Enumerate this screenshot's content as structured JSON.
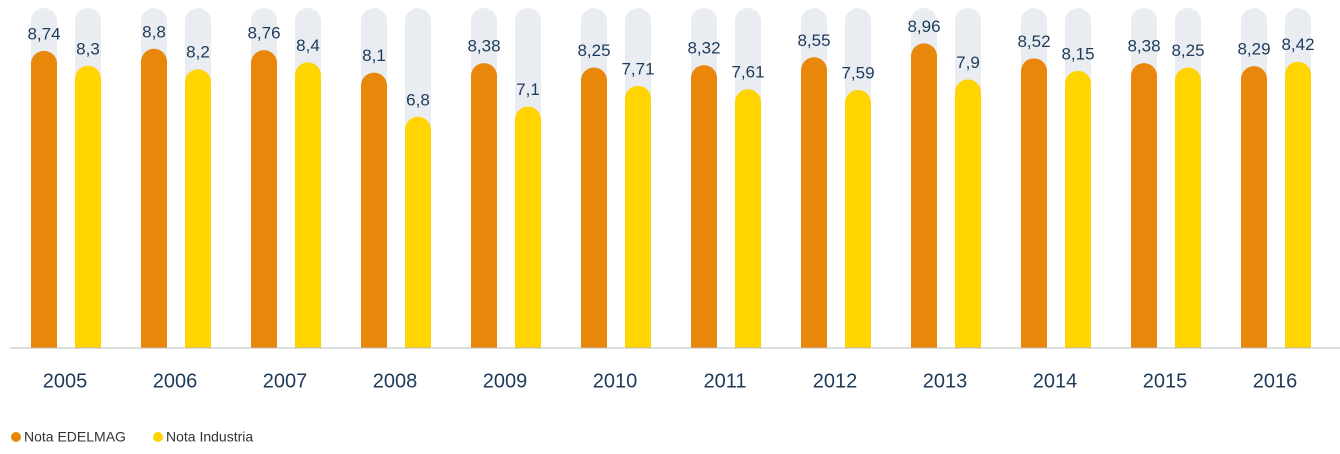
{
  "chart_data": {
    "type": "bar",
    "categories": [
      "2005",
      "2006",
      "2007",
      "2008",
      "2009",
      "2010",
      "2011",
      "2012",
      "2013",
      "2014",
      "2015",
      "2016"
    ],
    "series": [
      {
        "name": "Nota EDELMAG",
        "color": "#e8870a",
        "values": [
          8.74,
          8.8,
          8.76,
          8.1,
          8.38,
          8.25,
          8.32,
          8.55,
          8.96,
          8.52,
          8.38,
          8.29
        ],
        "value_labels": [
          "8,74",
          "8,8",
          "8,76",
          "8,1",
          "8,38",
          "8,25",
          "8,32",
          "8,55",
          "8,96",
          "8,52",
          "8,38",
          "8,29"
        ]
      },
      {
        "name": "Nota Industria",
        "color": "#ffd400",
        "values": [
          8.3,
          8.2,
          8.4,
          6.8,
          7.1,
          7.71,
          7.61,
          7.59,
          7.9,
          8.15,
          8.25,
          8.42
        ],
        "value_labels": [
          "8,3",
          "8,2",
          "8,4",
          "6,8",
          "7,1",
          "7,71",
          "7,61",
          "7,59",
          "7,9",
          "8,15",
          "8,25",
          "8,42"
        ]
      }
    ],
    "ylim": [
      0,
      10
    ],
    "track_color": "#e9edf2",
    "legend": "bottom-left"
  }
}
